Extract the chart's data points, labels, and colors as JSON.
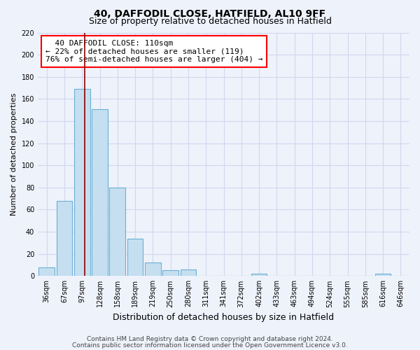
{
  "title": "40, DAFFODIL CLOSE, HATFIELD, AL10 9FF",
  "subtitle": "Size of property relative to detached houses in Hatfield",
  "xlabel": "Distribution of detached houses by size in Hatfield",
  "ylabel": "Number of detached properties",
  "bar_labels": [
    "36sqm",
    "67sqm",
    "97sqm",
    "128sqm",
    "158sqm",
    "189sqm",
    "219sqm",
    "250sqm",
    "280sqm",
    "311sqm",
    "341sqm",
    "372sqm",
    "402sqm",
    "433sqm",
    "463sqm",
    "494sqm",
    "524sqm",
    "555sqm",
    "585sqm",
    "616sqm",
    "646sqm"
  ],
  "bar_values": [
    8,
    68,
    169,
    151,
    80,
    34,
    12,
    5,
    6,
    0,
    0,
    0,
    2,
    0,
    0,
    0,
    0,
    0,
    0,
    2,
    0
  ],
  "bar_color": "#c5dff0",
  "bar_edge_color": "#6aafd4",
  "vline_x": 2.15,
  "vline_color": "#8b0000",
  "ylim": [
    0,
    220
  ],
  "yticks": [
    0,
    20,
    40,
    60,
    80,
    100,
    120,
    140,
    160,
    180,
    200,
    220
  ],
  "annotation_title": "40 DAFFODIL CLOSE: 110sqm",
  "annotation_line1": "← 22% of detached houses are smaller (119)",
  "annotation_line2": "76% of semi-detached houses are larger (404) →",
  "footer_line1": "Contains HM Land Registry data © Crown copyright and database right 2024.",
  "footer_line2": "Contains public sector information licensed under the Open Government Licence v3.0.",
  "background_color": "#eef2fb",
  "grid_color": "#d0d8ee",
  "title_fontsize": 10,
  "subtitle_fontsize": 9,
  "xlabel_fontsize": 9,
  "ylabel_fontsize": 8,
  "tick_fontsize": 7,
  "annotation_fontsize": 8,
  "footer_fontsize": 6.5
}
